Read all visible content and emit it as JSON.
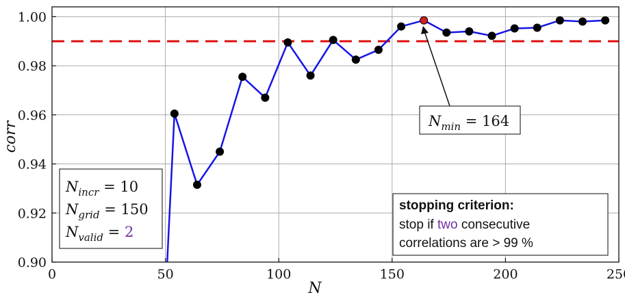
{
  "chart_data": {
    "type": "line",
    "xlabel": "N",
    "ylabel": "corr",
    "xlim": [
      0,
      250
    ],
    "ylim": [
      0.9,
      1.004
    ],
    "xticks": [
      "0",
      "50",
      "100",
      "150",
      "200",
      "250"
    ],
    "yticks": [
      "0.90",
      "0.92",
      "0.94",
      "0.96",
      "0.98",
      "1.00"
    ],
    "grid": true,
    "threshold": 0.99,
    "colors": {
      "line": "#1515e6",
      "marker": "#000000",
      "highlight": "#d22020",
      "threshold": "#e01010",
      "accent": "#7030a0"
    },
    "x": [
      50,
      54,
      64,
      74,
      84,
      94,
      104,
      114,
      124,
      134,
      144,
      154,
      164,
      174,
      184,
      194,
      204,
      214,
      224,
      234,
      244
    ],
    "y": [
      0.885,
      0.9605,
      0.9315,
      0.945,
      0.9755,
      0.967,
      0.9895,
      0.976,
      0.9905,
      0.9825,
      0.9865,
      0.996,
      0.9985,
      0.9935,
      0.994,
      0.9922,
      0.9952,
      0.9955,
      0.9985,
      0.998,
      0.9985
    ],
    "highlight_index": 12
  },
  "annotations": {
    "nmin_label": "N",
    "nmin_sub": "min",
    "nmin_value": " = 164",
    "params": [
      {
        "sym": "N",
        "sub": "incr",
        "eq": " = 10",
        "val": "",
        "accent": false
      },
      {
        "sym": "N",
        "sub": "grid",
        "eq": " = 150",
        "val": "",
        "accent": false
      },
      {
        "sym": "N",
        "sub": "valid",
        "eq": " = ",
        "val": "2",
        "accent": true
      }
    ],
    "stopping": {
      "title": "stopping criterion:",
      "line1_pre": "stop if ",
      "line1_accent": "two",
      "line1_post": " consecutive",
      "line2": "correlations are > 99 %"
    }
  }
}
